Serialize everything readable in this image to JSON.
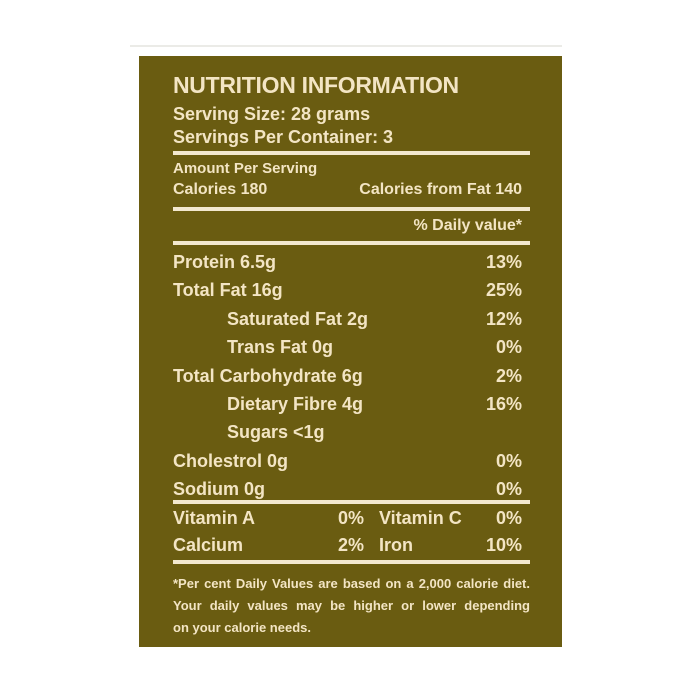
{
  "page": {
    "background_color": "#ffffff"
  },
  "label": {
    "background_color": "#6a5c11",
    "text_color": "#f3e5c4",
    "title": "NUTRITION INFORMATION",
    "serving": {
      "serving_size": "Serving Size: 28 grams",
      "servings_per_container": "Servings Per Container: 3"
    },
    "amount_per_serving": "Amount Per Serving",
    "calories": {
      "calories": "Calories 180",
      "calories_from_fat": "Calories from Fat 140"
    },
    "daily_value_header": "% Daily value*",
    "nutrients": [
      {
        "name": "Protein 6.5g",
        "dv": "13%",
        "indent": false
      },
      {
        "name": "Total Fat 16g",
        "dv": "25%",
        "indent": false
      },
      {
        "name": "Saturated Fat 2g",
        "dv": "12%",
        "indent": true
      },
      {
        "name": "Trans Fat 0g",
        "dv": "0%",
        "indent": true
      },
      {
        "name": "Total Carbohydrate 6g",
        "dv": "2%",
        "indent": false
      },
      {
        "name": "Dietary Fibre 4g",
        "dv": "16%",
        "indent": true
      },
      {
        "name": "Sugars <1g",
        "dv": "",
        "indent": true
      },
      {
        "name": "Cholestrol 0g",
        "dv": "0%",
        "indent": false
      },
      {
        "name": "Sodium 0g",
        "dv": "0%",
        "indent": false
      }
    ],
    "micronutrients": [
      {
        "name_left": "Vitamin A",
        "value_left": "0%",
        "name_right": "Vitamin C",
        "value_right": "0%"
      },
      {
        "name_left": "Calcium",
        "value_left": "2%",
        "name_right": "Iron",
        "value_right": "10%"
      }
    ],
    "footnote_lines": [
      "*Per cent Daily Values are based on a 2,000 calorie diet.",
      "Your daily values may be higher or lower depending",
      "on your calorie needs."
    ]
  }
}
